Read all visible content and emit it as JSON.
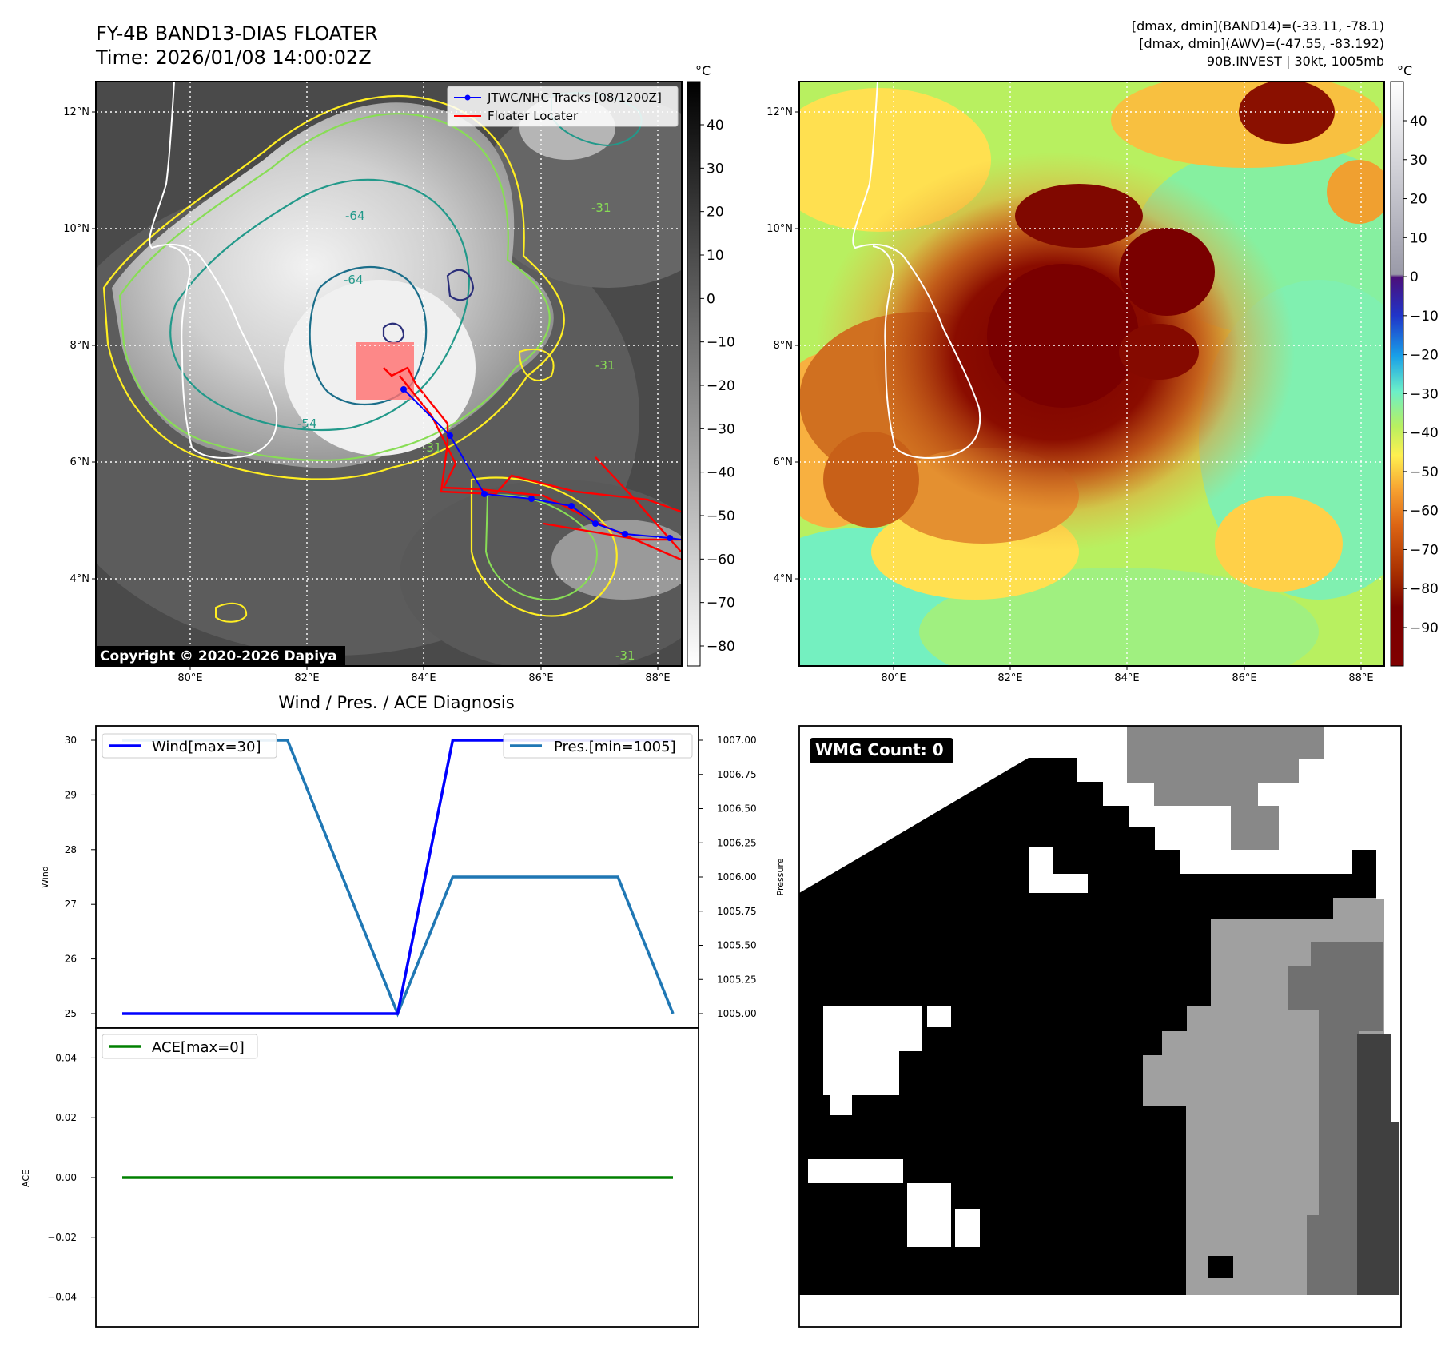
{
  "header": {
    "title_line1": "FY-4B BAND13-DIAS FLOATER",
    "title_line2": "Time: 2026/01/08 14:00:02Z",
    "info_line1": "[dmax, dmin](BAND14)=(-33.11, -78.1)",
    "info_line2": "[dmax, dmin](AWV)=(-47.55, -83.192)",
    "info_line3": "90B.INVEST | 30kt, 1005mb"
  },
  "map": {
    "lon_ticks": [
      "80°E",
      "82°E",
      "84°E",
      "86°E",
      "88°E"
    ],
    "lat_ticks": [
      "12°N",
      "10°N",
      "8°N",
      "6°N",
      "4°N"
    ],
    "copyright": "Copyright © 2020-2026 Dapiya",
    "legend": [
      "JTWC/NHC Tracks [08/1200Z]",
      "Floater Locater"
    ],
    "contour_labels": [
      "-64",
      "-64",
      "-54",
      "-31",
      "-31",
      "-31",
      "-31"
    ],
    "track_color": "#0000ff",
    "locator_color": "#ff0000"
  },
  "colorbar_gray": {
    "unit": "°C",
    "ticks": [
      "40",
      "30",
      "20",
      "10",
      "0",
      "−10",
      "−20",
      "−30",
      "−40",
      "−50",
      "−60",
      "−70",
      "−80"
    ]
  },
  "colorbar_color": {
    "unit": "°C",
    "ticks": [
      "40",
      "30",
      "20",
      "10",
      "0",
      "−10",
      "−20",
      "−30",
      "−40",
      "−50",
      "−60",
      "−70",
      "−80",
      "−90"
    ]
  },
  "diagnosis": {
    "title": "Wind / Pres. / ACE Diagnosis",
    "wmg_label": "WMG Count: 0"
  },
  "chart_data": [
    {
      "type": "line",
      "x": [
        0,
        1,
        2,
        3,
        4,
        5,
        6,
        7,
        8,
        9,
        10
      ],
      "series": [
        {
          "name": "Wind[max=30]",
          "axis": "left",
          "color": "#0000ff",
          "values": [
            25,
            25,
            25,
            25,
            25,
            25,
            30,
            30,
            30,
            30,
            30
          ]
        },
        {
          "name": "Pres.[min=1005]",
          "axis": "right",
          "color": "#1f77b4",
          "values": [
            1007,
            1007,
            1007,
            1007,
            1006,
            1005,
            1006,
            1006,
            1006,
            1006,
            1005
          ]
        }
      ],
      "ylabel": "Wind",
      "y2label": "Pressure",
      "ylim": [
        25,
        30
      ],
      "y2lim": [
        1005,
        1007
      ],
      "yticks": [
        "25",
        "26",
        "27",
        "28",
        "29",
        "30"
      ],
      "y2ticks": [
        "1005.00",
        "1005.25",
        "1005.50",
        "1005.75",
        "1006.00",
        "1006.25",
        "1006.50",
        "1006.75",
        "1007.00"
      ]
    },
    {
      "type": "line",
      "x": [
        0,
        1,
        2,
        3,
        4,
        5,
        6,
        7,
        8,
        9,
        10
      ],
      "series": [
        {
          "name": "ACE[max=0]",
          "color": "#008000",
          "values": [
            0,
            0,
            0,
            0,
            0,
            0,
            0,
            0,
            0,
            0,
            0
          ]
        }
      ],
      "ylabel": "ACE",
      "ylim": [
        -0.05,
        0.05
      ],
      "yticks": [
        "0.04",
        "0.02",
        "0.00",
        "−0.02",
        "−0.04"
      ]
    }
  ]
}
